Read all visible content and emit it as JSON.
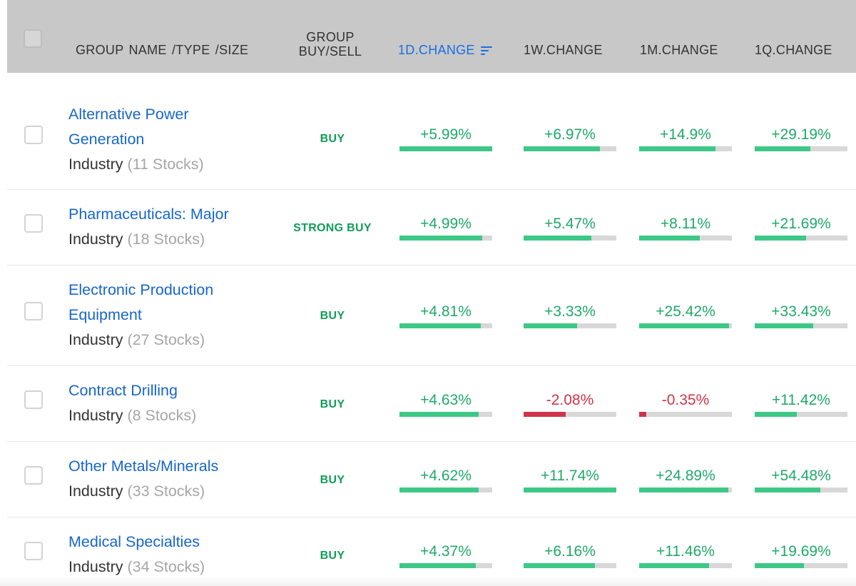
{
  "header": {
    "name_col": "GROUP  NAME /TYPE /SIZE",
    "group_col_line1": "GROUP",
    "group_col_line2": "BUY/SELL",
    "col_1d": "1D.CHANGE",
    "col_1w": "1W.CHANGE",
    "col_1m": "1M.CHANGE",
    "col_1q": "1Q.CHANGE",
    "sort_icon": "sort-descending-icon"
  },
  "colors": {
    "accent": "#1a6fe0",
    "positive": "#3ec887",
    "negative": "#d0334a",
    "signal": "#0f9d58"
  },
  "rows": [
    {
      "name": "Alternative Power Generation",
      "name_line1": "Alternative Power",
      "name_line2": "Generation",
      "type": "Industry",
      "count": "(11 Stocks)",
      "signal": "BUY",
      "d1": {
        "text": "+5.99%",
        "fill": 1.0,
        "sign": "pos"
      },
      "w1": {
        "text": "+6.97%",
        "fill": 0.82,
        "sign": "pos"
      },
      "m1": {
        "text": "+14.9%",
        "fill": 0.82,
        "sign": "pos"
      },
      "q1": {
        "text": "+29.19%",
        "fill": 0.6,
        "sign": "pos"
      }
    },
    {
      "name": "Pharmaceuticals: Major",
      "name_line1": "Pharmaceuticals: Major",
      "name_line2": "",
      "type": "Industry",
      "count": "(18 Stocks)",
      "signal": "STRONG BUY",
      "d1": {
        "text": "+4.99%",
        "fill": 0.89,
        "sign": "pos"
      },
      "w1": {
        "text": "+5.47%",
        "fill": 0.73,
        "sign": "pos"
      },
      "m1": {
        "text": "+8.11%",
        "fill": 0.65,
        "sign": "pos"
      },
      "q1": {
        "text": "+21.69%",
        "fill": 0.55,
        "sign": "pos"
      }
    },
    {
      "name": "Electronic Production Equipment",
      "name_line1": "Electronic Production",
      "name_line2": "Equipment",
      "type": "Industry",
      "count": "(27 Stocks)",
      "signal": "BUY",
      "d1": {
        "text": "+4.81%",
        "fill": 0.88,
        "sign": "pos"
      },
      "w1": {
        "text": "+3.33%",
        "fill": 0.58,
        "sign": "pos"
      },
      "m1": {
        "text": "+25.42%",
        "fill": 0.97,
        "sign": "pos"
      },
      "q1": {
        "text": "+33.43%",
        "fill": 0.63,
        "sign": "pos"
      }
    },
    {
      "name": "Contract Drilling",
      "name_line1": "Contract Drilling",
      "name_line2": "",
      "type": "Industry",
      "count": "(8 Stocks)",
      "signal": "BUY",
      "d1": {
        "text": "+4.63%",
        "fill": 0.85,
        "sign": "pos"
      },
      "w1": {
        "text": "-2.08%",
        "fill": 0.45,
        "sign": "neg"
      },
      "m1": {
        "text": "-0.35%",
        "fill": 0.08,
        "sign": "neg"
      },
      "q1": {
        "text": "+11.42%",
        "fill": 0.45,
        "sign": "pos"
      }
    },
    {
      "name": "Other Metals/Minerals",
      "name_line1": "Other Metals/Minerals",
      "name_line2": "",
      "type": "Industry",
      "count": "(33 Stocks)",
      "signal": "BUY",
      "d1": {
        "text": "+4.62%",
        "fill": 0.85,
        "sign": "pos"
      },
      "w1": {
        "text": "+11.74%",
        "fill": 1.0,
        "sign": "pos"
      },
      "m1": {
        "text": "+24.89%",
        "fill": 0.96,
        "sign": "pos"
      },
      "q1": {
        "text": "+54.48%",
        "fill": 0.71,
        "sign": "pos"
      }
    },
    {
      "name": "Medical Specialties",
      "name_line1": "Medical Specialties",
      "name_line2": "",
      "type": "Industry",
      "count": "(34 Stocks)",
      "signal": "BUY",
      "d1": {
        "text": "+4.37%",
        "fill": 0.82,
        "sign": "pos"
      },
      "w1": {
        "text": "+6.16%",
        "fill": 0.77,
        "sign": "pos"
      },
      "m1": {
        "text": "+11.46%",
        "fill": 0.75,
        "sign": "pos"
      },
      "q1": {
        "text": "+19.69%",
        "fill": 0.53,
        "sign": "pos"
      }
    }
  ]
}
